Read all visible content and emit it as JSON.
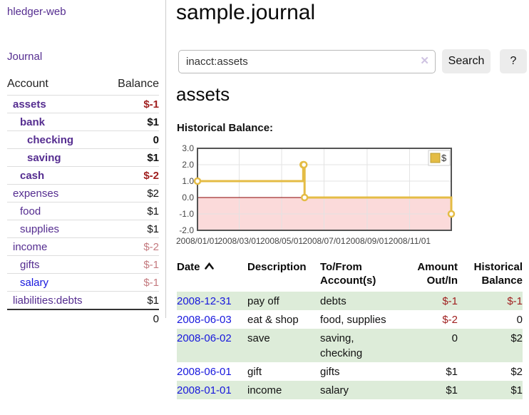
{
  "app": {
    "title": "hledger-web",
    "nav_journal": "Journal"
  },
  "sidebar": {
    "header": {
      "account": "Account",
      "balance": "Balance"
    },
    "accounts": [
      {
        "name": "assets",
        "depth": 0,
        "bold": true,
        "balance": "$-1",
        "balance_style": "neg"
      },
      {
        "name": "bank",
        "depth": 1,
        "bold": true,
        "balance": "$1",
        "balance_style": "pos"
      },
      {
        "name": "checking",
        "depth": 2,
        "bold": true,
        "balance": "0",
        "balance_style": "pos"
      },
      {
        "name": "saving",
        "depth": 2,
        "bold": true,
        "balance": "$1",
        "balance_style": "pos"
      },
      {
        "name": "cash",
        "depth": 1,
        "bold": true,
        "balance": "$-2",
        "balance_style": "neg"
      },
      {
        "name": "expenses",
        "depth": 0,
        "bold": false,
        "balance": "$2",
        "balance_style": "pos"
      },
      {
        "name": "food",
        "depth": 1,
        "bold": false,
        "balance": "$1",
        "balance_style": "pos"
      },
      {
        "name": "supplies",
        "depth": 1,
        "bold": false,
        "balance": "$1",
        "balance_style": "pos"
      },
      {
        "name": "income",
        "depth": 0,
        "bold": false,
        "balance": "$-2",
        "balance_style": "neglight"
      },
      {
        "name": "gifts",
        "depth": 1,
        "bold": false,
        "balance": "$-1",
        "balance_style": "neglight"
      },
      {
        "name": "salary",
        "depth": 1,
        "bold": false,
        "balance": "$-1",
        "balance_style": "neglight",
        "link_style": "unvisited"
      },
      {
        "name": "liabilities:debts",
        "depth": 0,
        "bold": false,
        "balance": "$1",
        "balance_style": "pos"
      }
    ],
    "total": "0"
  },
  "main": {
    "title": "sample.journal",
    "search": {
      "value": "inacct:assets",
      "clear_icon": "✕",
      "button": "Search",
      "help_button": "?"
    },
    "account_heading": "assets",
    "chart_label": "Historical Balance:"
  },
  "chart_data": {
    "type": "line",
    "title": "Historical Balance",
    "step": true,
    "grid": true,
    "x_range": [
      "2008-01-01",
      "2008-12-31"
    ],
    "ylim": [
      -2,
      3
    ],
    "y_ticks": [
      "3.0",
      "2.0",
      "1.0",
      "0.0",
      "-1.0",
      "-2.0"
    ],
    "x_ticks": [
      "2008/01/01",
      "2008/03/01",
      "2008/05/01",
      "2008/07/01",
      "2008/09/01",
      "2008/11/01"
    ],
    "series": [
      {
        "name": "$",
        "color": "#e4bc45",
        "points": [
          {
            "date": "2008-01-01",
            "value": 1
          },
          {
            "date": "2008-06-01",
            "value": 2
          },
          {
            "date": "2008-06-02",
            "value": 2
          },
          {
            "date": "2008-06-03",
            "value": 0
          },
          {
            "date": "2008-12-31",
            "value": -1
          }
        ]
      }
    ],
    "legend": {
      "label": "$",
      "position": "top-right",
      "swatch_icon": "gold-square"
    },
    "negative_region_color": "#fbdada",
    "zero_line_color": "#8b0000"
  },
  "register": {
    "columns": [
      {
        "id": "date",
        "label_lines": [
          "Date"
        ],
        "align": "left",
        "sorted": true,
        "sort_icon": "chevron-up"
      },
      {
        "id": "description",
        "label_lines": [
          "Description"
        ],
        "align": "left"
      },
      {
        "id": "accounts",
        "label_lines": [
          "To/From",
          "Account(s)"
        ],
        "align": "left"
      },
      {
        "id": "amount",
        "label_lines": [
          "Amount",
          "Out/In"
        ],
        "align": "right"
      },
      {
        "id": "balance",
        "label_lines": [
          "Historical",
          "Balance"
        ],
        "align": "right"
      }
    ],
    "rows": [
      {
        "date": "2008-12-31",
        "description": "pay off",
        "accounts": "debts",
        "amount": "$-1",
        "amount_neg": true,
        "balance": "$-1",
        "balance_neg": true
      },
      {
        "date": "2008-06-03",
        "description": "eat & shop",
        "accounts": "food, supplies",
        "amount": "$-2",
        "amount_neg": true,
        "balance": "0",
        "balance_neg": false
      },
      {
        "date": "2008-06-02",
        "description": "save",
        "accounts": "saving, checking",
        "amount": "0",
        "amount_neg": false,
        "balance": "$2",
        "balance_neg": false
      },
      {
        "date": "2008-06-01",
        "description": "gift",
        "accounts": "gifts",
        "amount": "$1",
        "amount_neg": false,
        "balance": "$2",
        "balance_neg": false
      },
      {
        "date": "2008-01-01",
        "description": "income",
        "accounts": "salary",
        "amount": "$1",
        "amount_neg": false,
        "balance": "$1",
        "balance_neg": false
      }
    ]
  },
  "colors": {
    "link_purple": "#552d90",
    "link_blue": "#1717dd",
    "negative_red": "#a02020",
    "negative_light_red": "#c47a7f",
    "row_stripe_green": "#ddecd9",
    "chart_gold": "#e4bc45",
    "negative_region_pink": "#fbdada",
    "zero_line_red": "#8b0000"
  }
}
